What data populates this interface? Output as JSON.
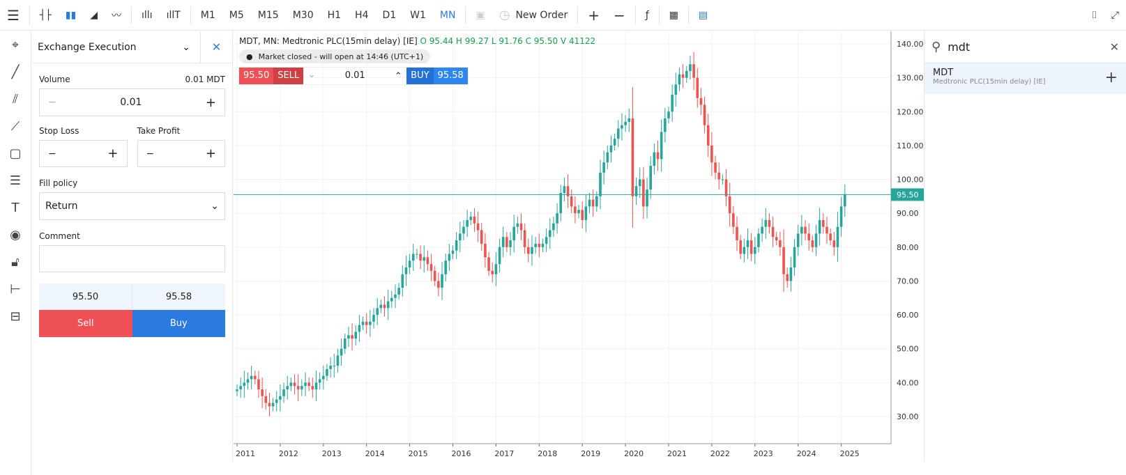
{
  "toolbar": {
    "timeframes": [
      "M1",
      "M5",
      "M15",
      "M30",
      "H1",
      "H4",
      "D1",
      "W1",
      "MN"
    ],
    "active": "MN",
    "new_order": "New Order"
  },
  "order_panel": {
    "title": "Exchange Execution",
    "volume_label": "Volume",
    "volume_info": "0.01 MDT",
    "volume": "0.01",
    "minus": "−",
    "plus": "+",
    "stop_loss": "Stop Loss",
    "take_profit": "Take Profit",
    "fill_policy_label": "Fill policy",
    "fill_policy": "Return",
    "comment_label": "Comment",
    "bid": "95.50",
    "ask": "95.58",
    "sell": "Sell",
    "buy": "Buy"
  },
  "chart": {
    "title": "MDT, MN: Medtronic PLC(15min delay) [IE]",
    "ohlc": "O 95.44 H 99.27 L 91.76 C 95.50 V 41122",
    "market_status": "Market closed - will open at 14:46 (UTC+1)",
    "sell_price": "95.50",
    "sell": "SELL",
    "lot": "0.01",
    "buy": "BUY",
    "buy_price": "95.58",
    "current_price": "95.50",
    "up_color": "#26a69a",
    "down_color": "#ef5350"
  },
  "chart_data": {
    "type": "candlestick",
    "ylim": [
      20,
      145
    ],
    "yticks": [
      "30.00",
      "40.00",
      "50.00",
      "60.00",
      "70.00",
      "80.00",
      "90.00",
      "100.00",
      "110.00",
      "120.00",
      "130.00",
      "140.00"
    ],
    "xticks": [
      "2011",
      "2012",
      "2013",
      "2014",
      "2015",
      "2016",
      "2017",
      "2018",
      "2019",
      "2020",
      "2021",
      "2022",
      "2023",
      "2024",
      "2025"
    ],
    "start_year": 2011,
    "last_price": 95.5,
    "monthly_close": [
      38,
      39,
      40,
      41,
      42,
      41,
      38,
      36,
      34,
      33,
      34,
      35,
      36,
      38,
      39,
      40,
      39,
      38,
      39,
      40,
      39,
      38,
      40,
      41,
      42,
      44,
      45,
      45,
      48,
      50,
      53,
      54,
      53,
      55,
      57,
      58,
      57,
      58,
      60,
      62,
      63,
      62,
      64,
      65,
      66,
      68,
      72,
      74,
      76,
      78,
      78,
      76,
      77,
      75,
      73,
      70,
      68,
      72,
      76,
      78,
      79,
      82,
      84,
      86,
      88,
      89,
      87,
      85,
      81,
      77,
      73,
      72,
      75,
      80,
      83,
      80,
      82,
      86,
      87,
      85,
      80,
      78,
      80,
      81,
      80,
      81,
      83,
      85,
      87,
      90,
      96,
      98,
      95,
      92,
      90,
      91,
      88,
      92,
      94,
      92,
      95,
      102,
      105,
      108,
      110,
      112,
      115,
      116,
      117,
      118,
      95,
      98,
      100,
      92,
      97,
      104,
      108,
      106,
      114,
      118,
      120,
      125,
      128,
      131,
      130,
      132,
      134,
      130,
      124,
      122,
      116,
      110,
      105,
      102,
      100,
      100,
      95,
      90,
      86,
      82,
      78,
      80,
      82,
      78,
      80,
      84,
      86,
      88,
      86,
      83,
      82,
      80,
      72,
      70,
      74,
      80,
      84,
      86,
      84,
      82,
      80,
      84,
      88,
      86,
      84,
      82,
      80,
      86,
      92,
      95.5
    ]
  },
  "search": {
    "query": "mdt",
    "result_symbol": "MDT",
    "result_desc": "Medtronic PLC(15min delay) [IE]"
  }
}
